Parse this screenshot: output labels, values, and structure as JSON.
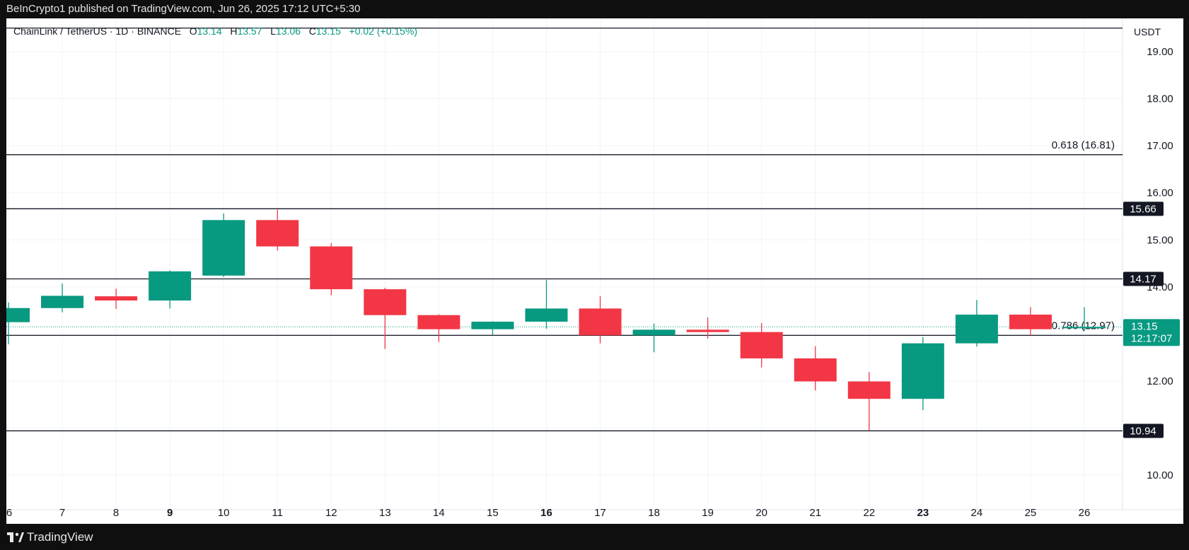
{
  "header": {
    "published_text": "BeInCrypto1 published on TradingView.com, Jun 26, 2025 17:12 UTC+5:30"
  },
  "legend": {
    "symbol": "ChainLink / TetherUS · 1D · BINANCE",
    "open_label": "O",
    "open": "13.14",
    "high_label": "H",
    "high": "13.57",
    "low_label": "L",
    "low": "13.06",
    "close_label": "C",
    "close": "13.15",
    "change": "+0.02 (+0.15%)"
  },
  "price_axis": {
    "unit": "USDT"
  },
  "footer": {
    "brand": "TradingView"
  },
  "colors": {
    "up": "#089981",
    "down": "#f23645",
    "line": "#131722",
    "background": "#ffffff"
  },
  "chart_data": {
    "type": "candlestick",
    "x_ticks": [
      {
        "label": "6",
        "bold": false
      },
      {
        "label": "7",
        "bold": false
      },
      {
        "label": "8",
        "bold": false
      },
      {
        "label": "9",
        "bold": true
      },
      {
        "label": "10",
        "bold": false
      },
      {
        "label": "11",
        "bold": false
      },
      {
        "label": "12",
        "bold": false
      },
      {
        "label": "13",
        "bold": false
      },
      {
        "label": "14",
        "bold": false
      },
      {
        "label": "15",
        "bold": false
      },
      {
        "label": "16",
        "bold": true
      },
      {
        "label": "17",
        "bold": false
      },
      {
        "label": "18",
        "bold": false
      },
      {
        "label": "19",
        "bold": false
      },
      {
        "label": "20",
        "bold": false
      },
      {
        "label": "21",
        "bold": false
      },
      {
        "label": "22",
        "bold": false
      },
      {
        "label": "23",
        "bold": true
      },
      {
        "label": "24",
        "bold": false
      },
      {
        "label": "25",
        "bold": false
      },
      {
        "label": "26",
        "bold": false
      }
    ],
    "y_ticks": [
      "19.00",
      "18.00",
      "17.00",
      "16.00",
      "15.00",
      "14.00",
      "12.00",
      "10.00"
    ],
    "y_range": [
      9.0,
      19.9
    ],
    "candles": [
      {
        "day": "6",
        "open": 13.25,
        "high": 13.67,
        "low": 12.78,
        "close": 13.55
      },
      {
        "day": "7",
        "open": 13.55,
        "high": 14.07,
        "low": 13.46,
        "close": 13.81
      },
      {
        "day": "8",
        "open": 13.8,
        "high": 13.96,
        "low": 13.53,
        "close": 13.71
      },
      {
        "day": "9",
        "open": 13.71,
        "high": 14.35,
        "low": 13.54,
        "close": 14.33
      },
      {
        "day": "10",
        "open": 14.24,
        "high": 15.56,
        "low": 14.21,
        "close": 15.42
      },
      {
        "day": "11",
        "open": 15.42,
        "high": 15.64,
        "low": 14.77,
        "close": 14.86
      },
      {
        "day": "12",
        "open": 14.86,
        "high": 14.93,
        "low": 13.82,
        "close": 13.95
      },
      {
        "day": "13",
        "open": 13.95,
        "high": 13.98,
        "low": 12.68,
        "close": 13.4
      },
      {
        "day": "14",
        "open": 13.4,
        "high": 13.42,
        "low": 12.83,
        "close": 13.1
      },
      {
        "day": "15",
        "open": 13.1,
        "high": 13.27,
        "low": 12.97,
        "close": 13.26
      },
      {
        "day": "16",
        "open": 13.26,
        "high": 14.15,
        "low": 13.11,
        "close": 13.54
      },
      {
        "day": "17",
        "open": 13.54,
        "high": 13.8,
        "low": 12.8,
        "close": 12.97
      },
      {
        "day": "18",
        "open": 12.97,
        "high": 13.22,
        "low": 12.61,
        "close": 13.09
      },
      {
        "day": "19",
        "open": 13.09,
        "high": 13.35,
        "low": 12.9,
        "close": 13.04
      },
      {
        "day": "20",
        "open": 13.04,
        "high": 13.23,
        "low": 12.29,
        "close": 12.48
      },
      {
        "day": "21",
        "open": 12.48,
        "high": 12.74,
        "low": 11.8,
        "close": 11.99
      },
      {
        "day": "22",
        "open": 11.99,
        "high": 12.19,
        "low": 10.95,
        "close": 11.62
      },
      {
        "day": "23",
        "open": 11.62,
        "high": 12.93,
        "low": 11.38,
        "close": 12.8
      },
      {
        "day": "24",
        "open": 12.8,
        "high": 13.72,
        "low": 12.73,
        "close": 13.41
      },
      {
        "day": "25",
        "open": 13.41,
        "high": 13.57,
        "low": 12.97,
        "close": 13.1
      },
      {
        "day": "26",
        "open": 13.14,
        "high": 13.57,
        "low": 13.06,
        "close": 13.15
      }
    ],
    "horizontal_levels": [
      {
        "price": 19.5,
        "label": ""
      },
      {
        "price": 16.81,
        "label": "0.618 (16.81)"
      },
      {
        "price": 15.66,
        "label": "",
        "badge": "15.66"
      },
      {
        "price": 14.17,
        "label": "",
        "badge": "14.17"
      },
      {
        "price": 12.97,
        "label": "0.786 (12.97)"
      },
      {
        "price": 10.94,
        "label": "",
        "badge": "10.94"
      }
    ],
    "current_price": {
      "value": "13.15",
      "countdown": "12:17:07"
    }
  }
}
